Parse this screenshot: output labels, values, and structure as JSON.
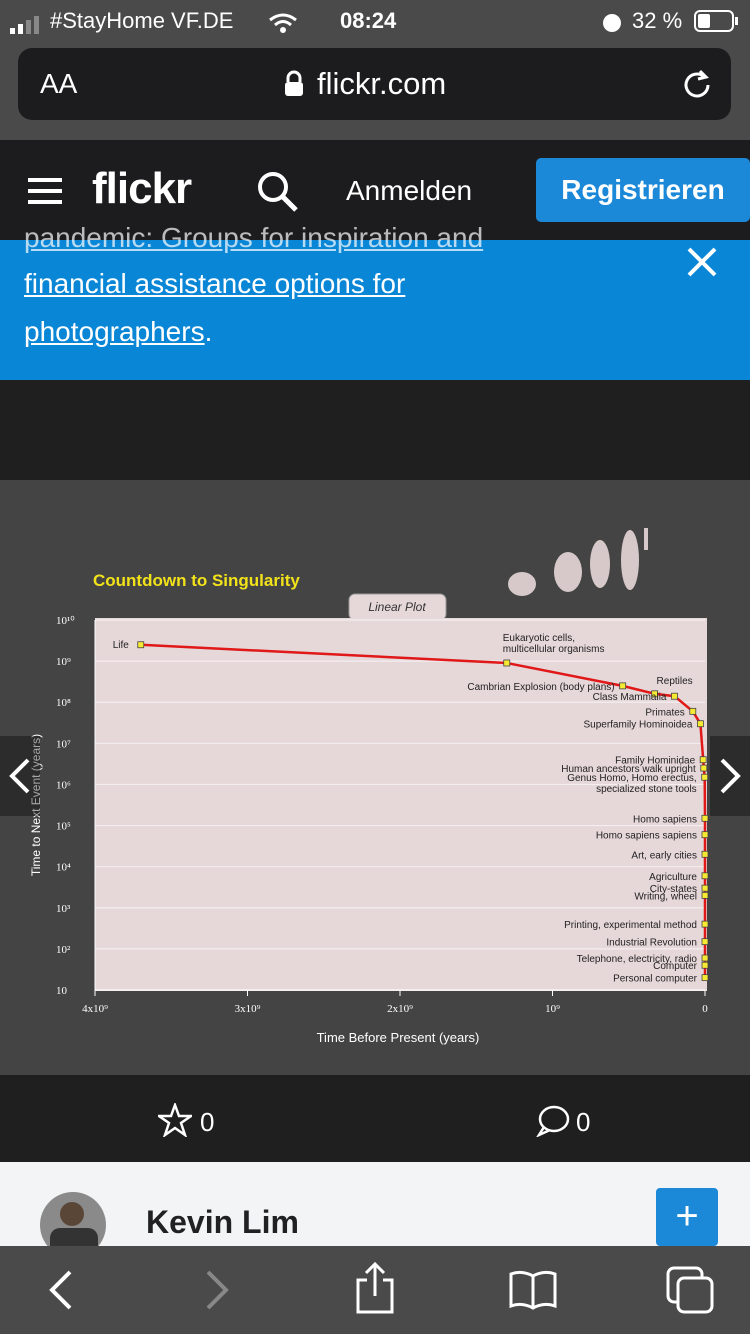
{
  "status_bar": {
    "carrier": "#StayHome VF.DE",
    "time": "08:24",
    "battery": "32 %"
  },
  "browser": {
    "text_size_button": "AA",
    "url": "flickr.com"
  },
  "header": {
    "logo": "flickr",
    "sign_in": "Anmelden",
    "register": "Registrieren"
  },
  "banner": {
    "line1": "pandemic: Groups for inspiration and",
    "line2": "financial assistance options for",
    "line3": "photographers",
    "trailing": "."
  },
  "photo": {
    "title": "Countdown to Singularity",
    "tab": "Linear Plot"
  },
  "chart_data": {
    "type": "scatter",
    "title": "Countdown to Singularity",
    "xlabel": "Time Before Present (years)",
    "ylabel": "Time to Next Event (years)",
    "x_scale": "linear",
    "y_scale": "log",
    "x_ticks": [
      "4x10⁹",
      "3x10⁹",
      "2x10⁹",
      "10⁹",
      "0"
    ],
    "y_ticks": [
      "10",
      "10²",
      "10³",
      "10⁴",
      "10⁵",
      "10⁶",
      "10⁷",
      "10⁸",
      "10⁹",
      "10¹⁰"
    ],
    "xlim": [
      4000000000,
      0
    ],
    "ylim": [
      10,
      10000000000
    ],
    "points": [
      {
        "label": "Life",
        "x": 3700000000,
        "y": 2500000000
      },
      {
        "label": "Eukaryotic cells, multicellular organisms",
        "x": 1300000000,
        "y": 900000000
      },
      {
        "label": "Cambrian Explosion (body plans)",
        "x": 540000000,
        "y": 250000000
      },
      {
        "label": "Reptiles",
        "x": 330000000,
        "y": 160000000
      },
      {
        "label": "Class Mammalia",
        "x": 200000000,
        "y": 140000000
      },
      {
        "label": "Primates",
        "x": 80000000,
        "y": 60000000
      },
      {
        "label": "Superfamily Hominoidea",
        "x": 30000000,
        "y": 30000000
      },
      {
        "label": "Family Hominidae",
        "x": 12000000,
        "y": 4000000
      },
      {
        "label": "Human ancestors walk upright",
        "x": 8000000,
        "y": 2500000
      },
      {
        "label": "Genus Homo, Homo erectus, specialized stone tools",
        "x": 2000000,
        "y": 1500000
      },
      {
        "label": "Homo sapiens",
        "x": 300000,
        "y": 150000
      },
      {
        "label": "Homo sapiens sapiens",
        "x": 100000,
        "y": 60000
      },
      {
        "label": "Art, early cities",
        "x": 30000,
        "y": 20000
      },
      {
        "label": "Agriculture",
        "x": 12000,
        "y": 6000
      },
      {
        "label": "City-states",
        "x": 7000,
        "y": 3000
      },
      {
        "label": "Writing, wheel",
        "x": 5000,
        "y": 2000
      },
      {
        "label": "Printing, experimental method",
        "x": 500,
        "y": 400
      },
      {
        "label": "Industrial Revolution",
        "x": 200,
        "y": 150
      },
      {
        "label": "Telephone, electricity, radio",
        "x": 100,
        "y": 60
      },
      {
        "label": "Computer",
        "x": 60,
        "y": 40
      },
      {
        "label": "Personal computer",
        "x": 25,
        "y": 20
      }
    ]
  },
  "actions": {
    "faves": "0",
    "comments": "0"
  },
  "profile": {
    "name": "Kevin Lim",
    "follow": "+"
  },
  "colors": {
    "accent": "#1b88d8",
    "curve": "#e01818",
    "title": "#f2e21a"
  },
  "icons": [
    "menu-icon",
    "search-icon",
    "close-icon",
    "star-icon",
    "comment-icon",
    "back-icon",
    "forward-icon",
    "share-icon",
    "book-icon",
    "tabs-icon",
    "reload-icon",
    "lock-icon"
  ]
}
